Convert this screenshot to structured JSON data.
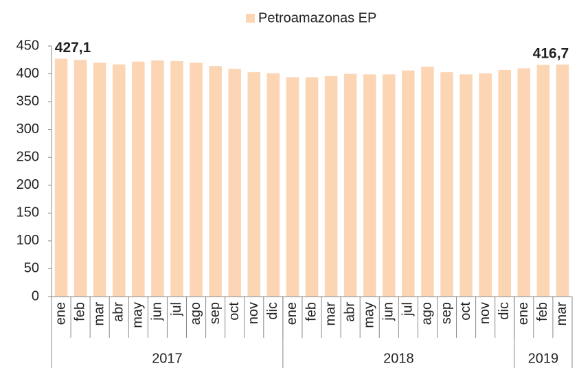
{
  "chart_data": {
    "type": "bar",
    "legend": "Petroamazonas EP",
    "color": "#fcd5b5",
    "groups": [
      {
        "label": "2017",
        "categories": [
          "ene",
          "feb",
          "mar",
          "abr",
          "may",
          "jun",
          "jul",
          "ago",
          "sep",
          "oct",
          "nov",
          "dic"
        ]
      },
      {
        "label": "2018",
        "categories": [
          "ene",
          "feb",
          "mar",
          "abr",
          "may",
          "jun",
          "jul",
          "ago",
          "sep",
          "oct",
          "nov",
          "dic"
        ]
      },
      {
        "label": "2019",
        "categories": [
          "ene",
          "feb",
          "mar"
        ]
      }
    ],
    "values": [
      427.1,
      425,
      420,
      417,
      422,
      424,
      423,
      420,
      414,
      409,
      403,
      401,
      394,
      394,
      396,
      400,
      399,
      399,
      406,
      413,
      403,
      399,
      401,
      407,
      410,
      416,
      416.7
    ],
    "value_labels": [
      "427,1",
      null,
      null,
      null,
      null,
      null,
      null,
      null,
      null,
      null,
      null,
      null,
      null,
      null,
      null,
      null,
      null,
      null,
      null,
      null,
      null,
      null,
      null,
      null,
      null,
      null,
      "416,7"
    ],
    "ylim": [
      0,
      450
    ],
    "yticks": [
      0,
      50,
      100,
      150,
      200,
      250,
      300,
      350,
      400,
      450
    ]
  }
}
